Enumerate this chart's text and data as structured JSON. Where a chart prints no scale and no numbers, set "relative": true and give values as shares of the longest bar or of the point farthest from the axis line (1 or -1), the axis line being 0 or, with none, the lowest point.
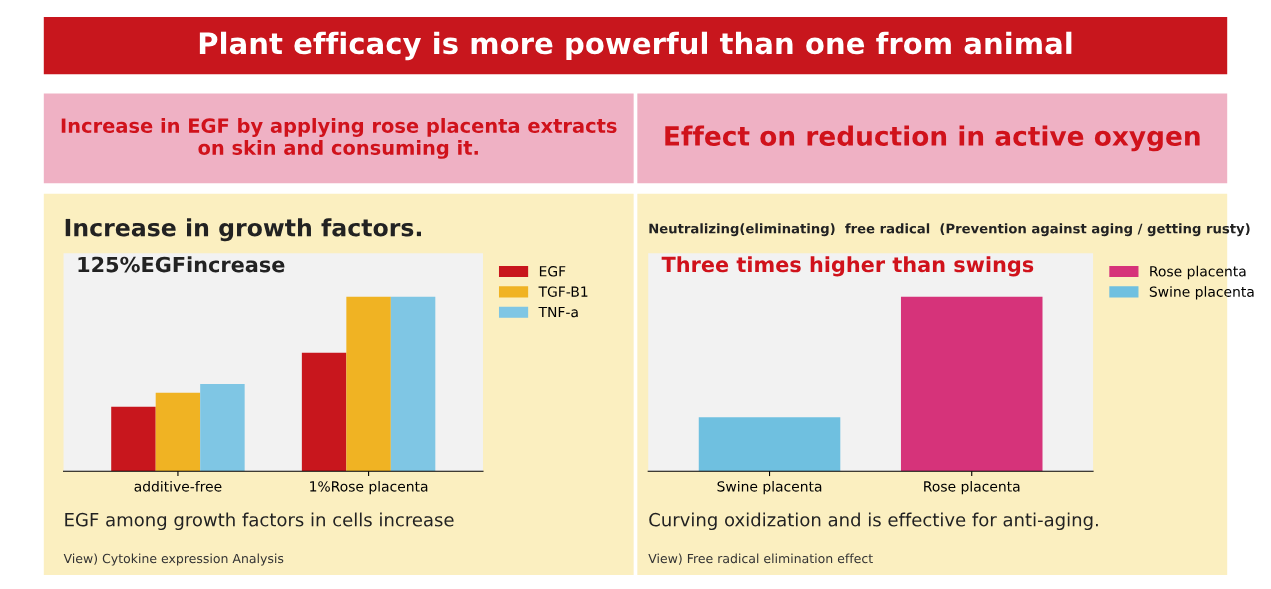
{
  "chart_data": [
    {
      "type": "bar",
      "title": "Increase in growth factors.",
      "subtitle": "Increase in EGF by applying rose placenta extracts\non skin and consuming it.",
      "relative": true,
      "categories": [
        "additive-free",
        "1%Rose placenta"
      ],
      "legend": "right",
      "grid": false,
      "series": [
        {
          "name": "EGF",
          "color": "#c8161d",
          "values": [
            0.37,
            0.68
          ]
        },
        {
          "name": "TGF-B1",
          "color": "#f0b323",
          "values": [
            0.45,
            1
          ]
        },
        {
          "name": "TNF-a",
          "color": "#7fc6e4",
          "values": [
            0.5,
            1
          ]
        }
      ],
      "annotations": [
        "Plant efficacy is more powerful than one from animal",
        "125%EGFincrease",
        "EGF among growth factors in cells increase",
        "View) Cytokine expression Analysis"
      ]
    },
    {
      "type": "bar",
      "title": "Neutralizing(eliminating)  free radical  (Prevention against aging / getting rusty)",
      "subtitle": "Effect on reduction in active oxygen",
      "relative": true,
      "categories": [
        "Swine placenta",
        "Rose placenta"
      ],
      "legend": "right",
      "grid": false,
      "series": [
        {
          "name": "Rose placenta",
          "color": "#d6337a",
          "values": [
            null,
            1
          ]
        },
        {
          "name": "Swine placenta",
          "color": "#6fc0e0",
          "values": [
            0.31,
            null
          ]
        }
      ],
      "annotations": [
        "Three times higher than swings",
        "Curving oxidization and is effective for anti-aging.",
        "View) Free radical elimination effect"
      ]
    }
  ]
}
